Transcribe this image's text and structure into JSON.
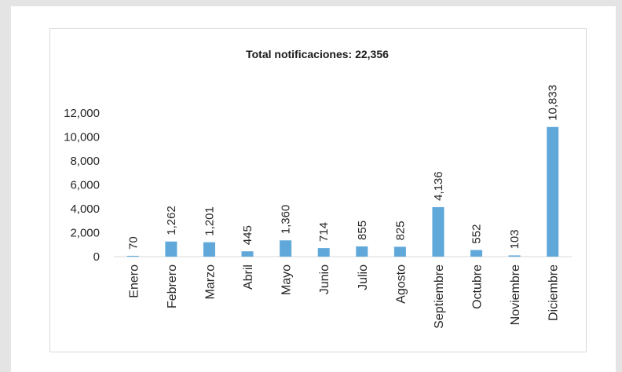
{
  "chart_data": {
    "type": "bar",
    "title": "Total notificaciones: 22,356",
    "categories": [
      "Enero",
      "Febrero",
      "Marzo",
      "Abril",
      "Mayo",
      "Junio",
      "Julio",
      "Agosto",
      "Septiembre",
      "Octubre",
      "Noviembre",
      "Diciembre"
    ],
    "values": [
      70,
      1262,
      1201,
      445,
      1360,
      714,
      855,
      825,
      4136,
      552,
      103,
      10833
    ],
    "value_labels": [
      "70",
      "1,262",
      "1,201",
      "445",
      "1,360",
      "714",
      "855",
      "825",
      "4,136",
      "552",
      "103",
      "10,833"
    ],
    "yticks": [
      "0",
      "2,000",
      "4,000",
      "6,000",
      "8,000",
      "10,000",
      "12,000"
    ],
    "ylim": [
      0,
      12000
    ],
    "grid": false,
    "legend": "none",
    "bar_color": "#5fa8d9"
  }
}
